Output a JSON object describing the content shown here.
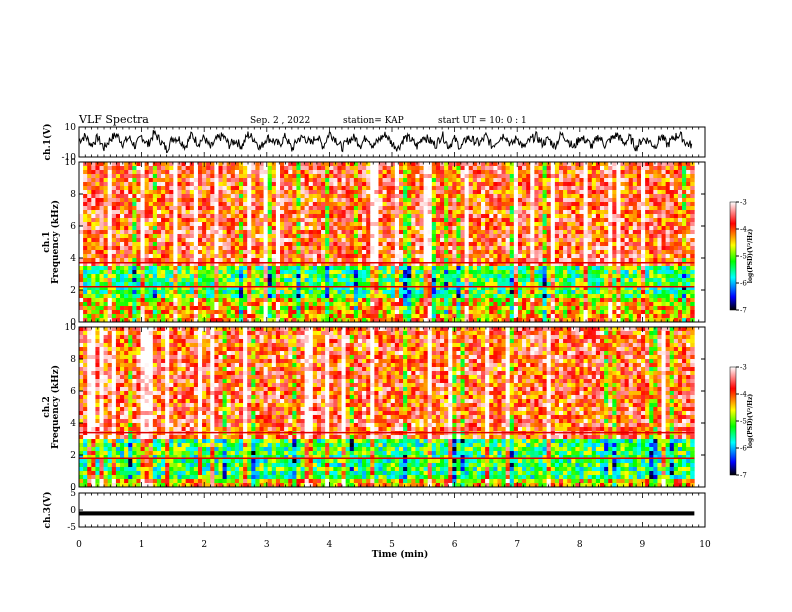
{
  "header": {
    "title": "VLF Spectra",
    "date": "Sep. 2 , 2022",
    "station": "station= KAP",
    "start_ut": "start  UT =   10: 0  : 1"
  },
  "chart_data": [
    {
      "type": "line",
      "panel": "ch1-waveform",
      "ylabel": "ch.1(V)",
      "ylim": [
        -10,
        10
      ],
      "yticks": [
        "10",
        "-10"
      ],
      "xlim": [
        0,
        10
      ],
      "x": [
        0,
        0.1,
        0.2,
        0.3,
        0.4,
        0.5,
        0.6,
        0.7,
        0.8,
        0.9,
        1.0,
        1.1,
        1.2,
        1.3,
        1.4,
        1.5,
        1.6,
        1.7,
        1.8,
        1.9,
        2.0,
        2.1,
        2.2,
        2.3,
        2.4,
        2.5,
        2.6,
        2.7,
        2.8,
        2.9,
        3.0,
        3.1,
        3.2,
        3.3,
        3.4,
        3.5,
        3.6,
        3.7,
        3.8,
        3.9,
        4.0,
        4.1,
        4.2,
        4.3,
        4.4,
        4.5,
        4.6,
        4.7,
        4.8,
        4.9,
        5.0,
        5.1,
        5.2,
        5.3,
        5.4,
        5.5,
        5.6,
        5.7,
        5.8,
        5.9,
        6.0,
        6.1,
        6.2,
        6.3,
        6.4,
        6.5,
        6.6,
        6.7,
        6.8,
        6.9,
        7.0,
        7.1,
        7.2,
        7.3,
        7.4,
        7.5,
        7.6,
        7.7,
        7.8,
        7.9,
        8.0,
        8.1,
        8.2,
        8.3,
        8.4,
        8.5,
        8.6,
        8.7,
        8.8,
        8.9,
        9.0,
        9.1,
        9.2,
        9.3,
        9.4,
        9.5,
        9.6,
        9.7,
        9.8
      ],
      "y": [
        1,
        4,
        -2,
        3,
        -4,
        2,
        5,
        -1,
        3,
        -3,
        4,
        -2,
        6,
        1,
        -5,
        3,
        2,
        -3,
        5,
        -1,
        3,
        -4,
        2,
        4,
        -2,
        1,
        -3,
        5,
        2,
        -4,
        3,
        1,
        -2,
        4,
        -5,
        2,
        3,
        -1,
        4,
        -3,
        6,
        2,
        -4,
        1,
        3,
        -2,
        4,
        -3,
        2,
        5,
        -1,
        -4,
        3,
        2,
        -3,
        4,
        1,
        -2,
        5,
        -3,
        2,
        -4,
        3,
        1,
        -1,
        4,
        -3,
        2,
        5,
        -2,
        3,
        -4,
        1,
        4,
        -1,
        2,
        -3,
        5,
        2,
        -4,
        3,
        1,
        -3,
        4,
        -2,
        2,
        5,
        -1,
        3,
        -4,
        2,
        1,
        -3,
        4,
        -2,
        3,
        5,
        -1,
        -2
      ]
    },
    {
      "type": "heatmap",
      "panel": "ch1-spectrogram",
      "xlabel": "Time (min)",
      "ylabel": "ch.1\nFrequency (kHz)",
      "ylim": [
        0,
        10
      ],
      "yticks": [
        "0",
        "2",
        "4",
        "6",
        "8",
        "10"
      ],
      "xlim": [
        0,
        10
      ],
      "data_extent_x": 9.83,
      "colorbar": {
        "label": "log(PSD)(V²/Hz)",
        "range": [
          -7,
          -3
        ],
        "ticks": [
          "-3",
          "-4",
          "-5",
          "-6",
          "-7"
        ]
      },
      "dominant_bands": [
        {
          "from_khz": 0.5,
          "to_khz": 1.5,
          "log_psd": -4.5
        },
        {
          "from_khz": 1.5,
          "to_khz": 3.5,
          "log_psd": -5.2
        },
        {
          "from_khz": 3.5,
          "to_khz": 10,
          "log_psd": -3.8
        }
      ],
      "lines_khz": [
        2.2,
        3.7
      ]
    },
    {
      "type": "heatmap",
      "panel": "ch2-spectrogram",
      "xlabel": "Time (min)",
      "ylabel": "ch.2\nFrequency (kHz)",
      "ylim": [
        0,
        10
      ],
      "yticks": [
        "0",
        "2",
        "4",
        "6",
        "8",
        "10"
      ],
      "xlim": [
        0,
        10
      ],
      "data_extent_x": 9.83,
      "colorbar": {
        "label": "log(PSD)(V²/Hz)",
        "range": [
          -7,
          -3
        ],
        "ticks": [
          "-3",
          "-4",
          "-5",
          "-6",
          "-7"
        ]
      },
      "dominant_bands": [
        {
          "from_khz": 0.5,
          "to_khz": 3.0,
          "log_psd": -5.3
        },
        {
          "from_khz": 3.0,
          "to_khz": 10,
          "log_psd": -3.8
        }
      ],
      "lines_khz": [
        1.8,
        3.4
      ]
    },
    {
      "type": "line",
      "panel": "ch3-waveform",
      "ylabel": "ch.3(V)",
      "ylim": [
        -5,
        5
      ],
      "yticks": [
        "5",
        "0",
        "-5"
      ],
      "xlim": [
        0,
        10
      ],
      "x": [
        0,
        9.83
      ],
      "y": [
        -1,
        -1
      ],
      "band_half_width_v": 0.6
    }
  ],
  "xaxis": {
    "label": "Time (min)",
    "ticks": [
      "0",
      "1",
      "2",
      "3",
      "4",
      "5",
      "6",
      "7",
      "8",
      "9",
      "10"
    ]
  },
  "colors": {
    "frame": "#000000",
    "colormap": [
      "#000000",
      "#0000ff",
      "#00ffff",
      "#00ff00",
      "#ffff00",
      "#ff0000",
      "#ffffff"
    ]
  }
}
